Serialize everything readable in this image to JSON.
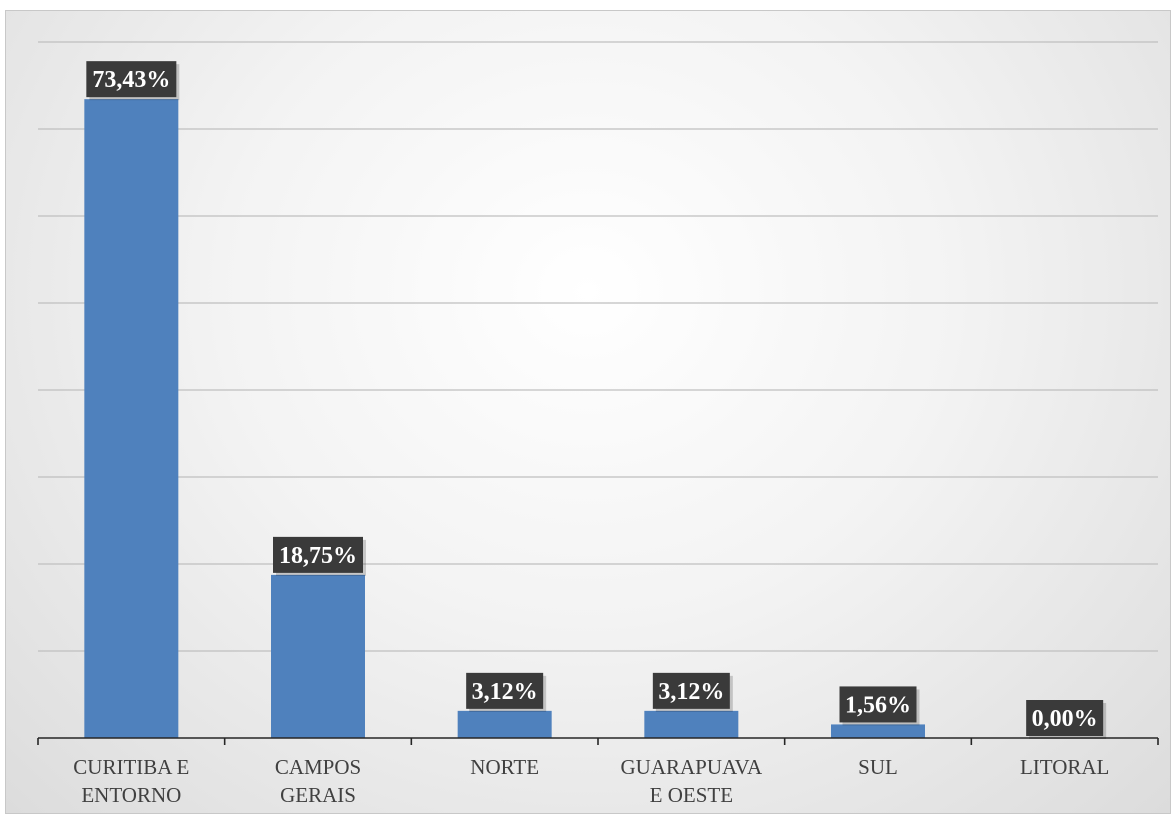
{
  "chart_data": {
    "type": "bar",
    "title": "",
    "xlabel": "",
    "ylabel": "",
    "categories": [
      [
        "CURITIBA E",
        "ENTORNO"
      ],
      [
        "CAMPOS",
        "GERAIS"
      ],
      [
        "NORTE"
      ],
      [
        "GUARAPUAVA",
        "E OESTE"
      ],
      [
        "SUL"
      ],
      [
        "LITORAL"
      ]
    ],
    "values": [
      73.43,
      18.75,
      3.12,
      3.12,
      1.56,
      0.0
    ],
    "data_labels": [
      "73,43%",
      "18,75%",
      "3,12%",
      "3,12%",
      "1,56%",
      "0,00%"
    ],
    "ylim": [
      0,
      80
    ],
    "y_gridline_step": 10,
    "y_axis_visible": false,
    "grid": true,
    "legend": "none",
    "colors": {
      "bar": "#4f81bd",
      "label_box": "#3a3a3a",
      "label_text": "#ffffff",
      "gridline": "#bfbfbf",
      "axis": "#262626",
      "category_text": "#404040"
    }
  }
}
